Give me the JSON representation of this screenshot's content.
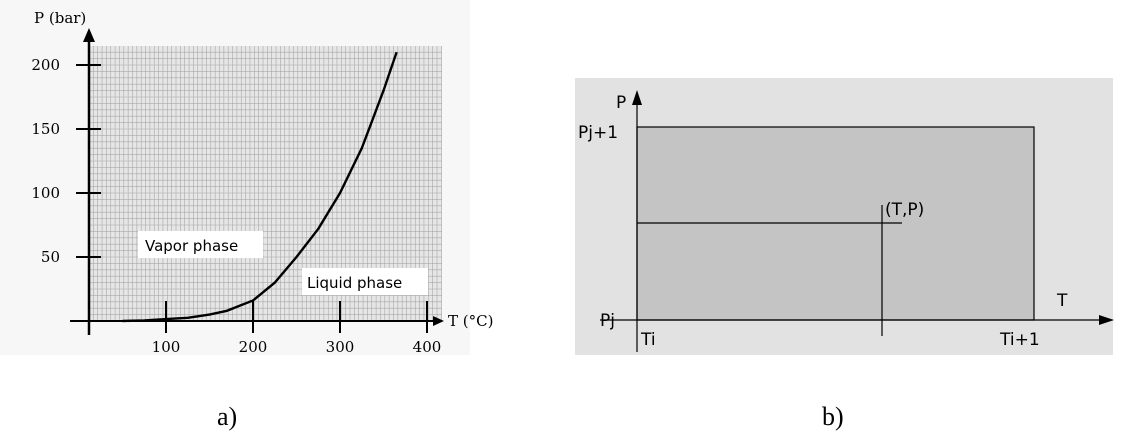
{
  "chart_data": [
    {
      "type": "line",
      "panel_label": "a)",
      "xlabel": "T (°C)",
      "ylabel": "P (bar)",
      "xlim": [
        0,
        420
      ],
      "ylim": [
        0,
        215
      ],
      "x_ticks": [
        100,
        200,
        300,
        400
      ],
      "y_ticks": [
        50,
        100,
        150,
        200
      ],
      "grid": true,
      "annotations": [
        "Vapor phase",
        "Liquid phase"
      ],
      "series": [
        {
          "x": [
            50,
            75,
            100,
            125,
            150,
            170,
            185,
            200,
            225,
            250,
            275,
            300,
            325,
            350,
            365
          ],
          "y": [
            0,
            0.5,
            1.5,
            2.5,
            5,
            8,
            12,
            16,
            30,
            50,
            72,
            100,
            135,
            180,
            210
          ],
          "color": "#000000"
        }
      ]
    },
    {
      "type": "diagram",
      "panel_label": "b)",
      "xlabel": "T",
      "ylabel": "P",
      "x_ticks": [
        "Ti",
        "Ti+1"
      ],
      "y_ticks": [
        "Pj",
        "Pj+1"
      ],
      "point_label": "(T,P)",
      "cell_fill": "#c4c4c4",
      "panel_fill": "#e2e2e2"
    }
  ]
}
